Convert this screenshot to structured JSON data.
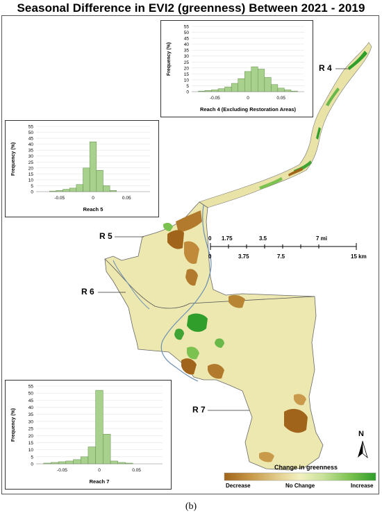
{
  "title": "Seasonal Difference in EVI2 (greenness) Between 2021 - 2019",
  "caption": "(b)",
  "reach_labels": [
    "R 4",
    "R 5",
    "R 6",
    "R 7"
  ],
  "scale_bar": {
    "mile_ticks": [
      "0",
      "1.75",
      "3.5",
      "7 mi"
    ],
    "km_ticks": [
      "0",
      "3.75",
      "7.5",
      "15 km"
    ]
  },
  "north_arrow_label": "N",
  "legend": {
    "title": "Change in greenness",
    "low_label": "Decrease",
    "mid_label": "No Change",
    "high_label": "Increase",
    "colors": [
      "#a0651a",
      "#c89a4a",
      "#e6d497",
      "#f2f0c0",
      "#c9e29a",
      "#7cc250",
      "#2f9e2a"
    ]
  },
  "chart_data": [
    {
      "type": "bar",
      "title": "Reach 4 (Excluding Restoration Areas)",
      "xlabel": "Reach 4 (Excluding Restoration Areas)",
      "ylabel": "Frequency (%)",
      "x_ticks": [
        "-0.05",
        "0",
        "0.05"
      ],
      "y_ticks": [
        "0",
        "5",
        "10",
        "15",
        "20",
        "25",
        "30",
        "35",
        "40",
        "45",
        "50",
        "55"
      ],
      "ylim": [
        0,
        55
      ],
      "xlim": [
        -0.085,
        0.085
      ],
      "bin_centers": [
        -0.07,
        -0.06,
        -0.05,
        -0.04,
        -0.03,
        -0.02,
        -0.01,
        0.0,
        0.01,
        0.02,
        0.03,
        0.04,
        0.05,
        0.06,
        0.07
      ],
      "values": [
        0.5,
        1,
        1.5,
        2.5,
        4,
        7,
        11,
        17,
        21,
        19,
        12,
        6,
        3,
        1.5,
        0.5
      ],
      "bar_color": "#a9d18e"
    },
    {
      "type": "bar",
      "title": "Reach 5",
      "xlabel": "Reach 5",
      "ylabel": "Frequency (%)",
      "x_ticks": [
        "-0.05",
        "0",
        "0.05"
      ],
      "y_ticks": [
        "0",
        "5",
        "10",
        "15",
        "20",
        "25",
        "30",
        "35",
        "40",
        "45",
        "50",
        "55"
      ],
      "ylim": [
        0,
        55
      ],
      "xlim": [
        -0.085,
        0.085
      ],
      "bin_centers": [
        -0.06,
        -0.05,
        -0.04,
        -0.03,
        -0.02,
        -0.01,
        0.0,
        0.01,
        0.02,
        0.03
      ],
      "values": [
        0.5,
        1,
        2,
        3,
        6,
        20,
        42,
        18,
        5,
        1
      ],
      "bar_color": "#a9d18e"
    },
    {
      "type": "bar",
      "title": "Reach 7",
      "xlabel": "Reach 7",
      "ylabel": "Frequency (%)",
      "x_ticks": [
        "-0.05",
        "0",
        "0.05"
      ],
      "y_ticks": [
        "0",
        "5",
        "10",
        "15",
        "20",
        "25",
        "30",
        "35",
        "40",
        "45",
        "50",
        "55"
      ],
      "ylim": [
        0,
        55
      ],
      "xlim": [
        -0.085,
        0.085
      ],
      "bin_centers": [
        -0.07,
        -0.06,
        -0.05,
        -0.04,
        -0.03,
        -0.02,
        -0.01,
        0.0,
        0.01,
        0.02,
        0.03,
        0.04
      ],
      "values": [
        0.5,
        1,
        1.5,
        2,
        3,
        5,
        12,
        52,
        21,
        2,
        1,
        0.5
      ],
      "bar_color": "#a9d18e"
    }
  ]
}
